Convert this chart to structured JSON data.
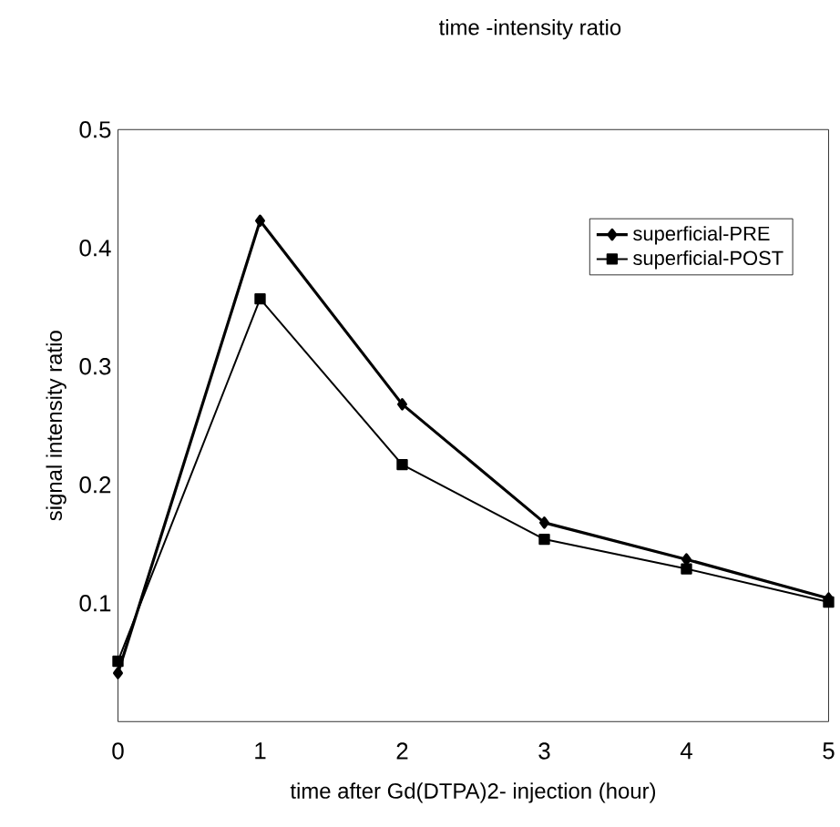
{
  "chart_data": {
    "type": "line",
    "title": "time -intensity ratio",
    "xlabel": "time after Gd(DTPA)2- injection (hour)",
    "ylabel": "signal intensity ratio",
    "x": [
      0,
      1,
      2,
      3,
      4,
      5
    ],
    "series": [
      {
        "name": "superficial-PRE",
        "color": "#000000",
        "marker": "diamond",
        "values": [
          0.041,
          0.423,
          0.268,
          0.168,
          0.137,
          0.104
        ]
      },
      {
        "name": "superficial-POST",
        "color": "#000000",
        "marker": "square",
        "values": [
          0.051,
          0.357,
          0.217,
          0.154,
          0.129,
          0.101
        ]
      }
    ],
    "xlim": [
      0,
      5
    ],
    "ylim": [
      0,
      0.5
    ],
    "xticks": [
      0,
      1,
      2,
      3,
      4,
      5
    ],
    "yticks": [
      0.1,
      0.2,
      0.3,
      0.4,
      0.5
    ],
    "grid": false,
    "legend": "top right",
    "line_style": "solid"
  }
}
